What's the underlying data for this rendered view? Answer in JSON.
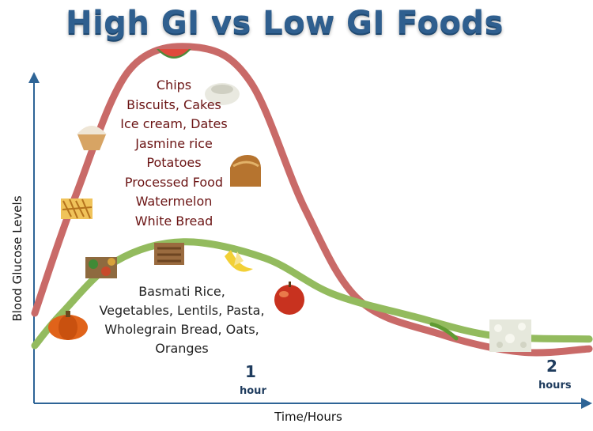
{
  "title": "High GI vs Low GI Foods",
  "chart_data": {
    "type": "line",
    "xlabel": "Time/Hours",
    "ylabel": "Blood Glucose Levels",
    "x_ticks": [
      {
        "value": 1,
        "number": "1",
        "unit": "hour"
      },
      {
        "value": 2,
        "number": "2",
        "unit": "hours"
      }
    ],
    "xlim": [
      0,
      2.2
    ],
    "ylim": [
      0,
      10
    ],
    "grid": false,
    "series": [
      {
        "color": "#c96a68",
        "points": [
          [
            0,
            2.0
          ],
          [
            0.15,
            5.6
          ],
          [
            0.35,
            9.5
          ],
          [
            0.6,
            10.2
          ],
          [
            0.8,
            9.1
          ],
          [
            1.0,
            5.2
          ],
          [
            1.2,
            2.4
          ],
          [
            1.5,
            1.35
          ],
          [
            1.8,
            0.8
          ],
          [
            2.05,
            0.9
          ]
        ],
        "foods": [
          "Chips",
          "Biscuits, Cakes",
          "Ice cream, Dates",
          "Jasmine rice",
          "Potatoes",
          "Processed Food",
          "Watermelon",
          "White Bread"
        ]
      },
      {
        "color": "#93bb5e",
        "points": [
          [
            0,
            1.0
          ],
          [
            0.1,
            2.0
          ],
          [
            0.3,
            3.6
          ],
          [
            0.55,
            4.2
          ],
          [
            0.85,
            3.7
          ],
          [
            1.1,
            2.6
          ],
          [
            1.4,
            1.9
          ],
          [
            1.7,
            1.3
          ],
          [
            2.05,
            1.2
          ]
        ],
        "foods": [
          "Basmati Rice,",
          "Vegetables, Lentils, Pasta,",
          "Wholegrain Bread, Oats,",
          "Oranges"
        ]
      }
    ]
  }
}
